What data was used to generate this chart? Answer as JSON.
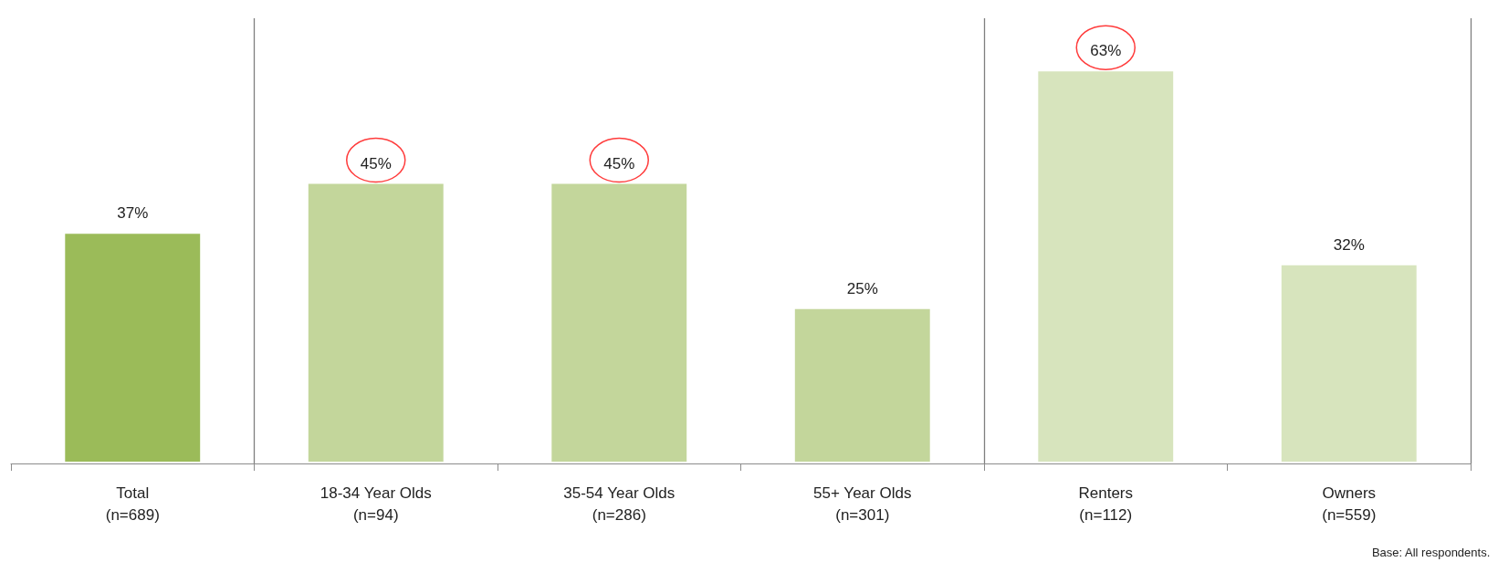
{
  "chart_data": {
    "type": "bar",
    "categories": [
      "Total\n(n=689)",
      "18-34 Year Olds\n(n=94)",
      "35-54 Year Olds\n(n=286)",
      "55+ Year Olds\n(n=301)",
      "Renters\n(n=112)",
      "Owners\n(n=559)"
    ],
    "values": [
      37,
      45,
      45,
      25,
      63,
      32
    ],
    "colors": [
      "#9bbb59",
      "#c3d69b",
      "#c3d69b",
      "#c3d69b",
      "#d7e4bd",
      "#d7e4bd"
    ],
    "value_labels": [
      "37%",
      "45%",
      "45%",
      "25%",
      "63%",
      "32%"
    ],
    "annotations": [
      "Base: All respondents."
    ]
  }
}
